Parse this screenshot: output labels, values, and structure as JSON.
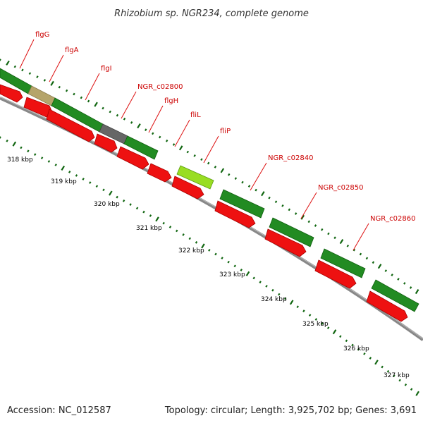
{
  "header": {
    "title": "Rhizobium sp. NGR234, complete genome"
  },
  "footer": {
    "accession": "Accession: NC_012587",
    "summary": "Topology: circular; Length: 3,925,702 bp; Genes: 3,691"
  },
  "colors": {
    "forward_gene": "#2e8b2e",
    "reverse_gene": "#ee1111",
    "backbone": "#888888",
    "tick": "#116611",
    "label": "#cc0000",
    "gene_fliA_like": "#b0a060",
    "gene_grey": "#666666",
    "gene_lime": "#99dd33"
  },
  "gene_labels": [
    {
      "name": "flgG"
    },
    {
      "name": "flgA"
    },
    {
      "name": "flgI"
    },
    {
      "name": "NGR_c02800"
    },
    {
      "name": "flgH"
    },
    {
      "name": "fliL"
    },
    {
      "name": "fliP"
    },
    {
      "name": "NGR_c02840"
    },
    {
      "name": "NGR_c02850"
    },
    {
      "name": "NGR_c02860"
    }
  ],
  "kbp_ticks": [
    {
      "label": "318 kbp"
    },
    {
      "label": "319 kbp"
    },
    {
      "label": "320 kbp"
    },
    {
      "label": "321 kbp"
    },
    {
      "label": "322 kbp"
    },
    {
      "label": "323 kbp"
    },
    {
      "label": "324 kbp"
    },
    {
      "label": "325 kbp"
    },
    {
      "label": "326 kbp"
    },
    {
      "label": "327 kbp"
    }
  ]
}
